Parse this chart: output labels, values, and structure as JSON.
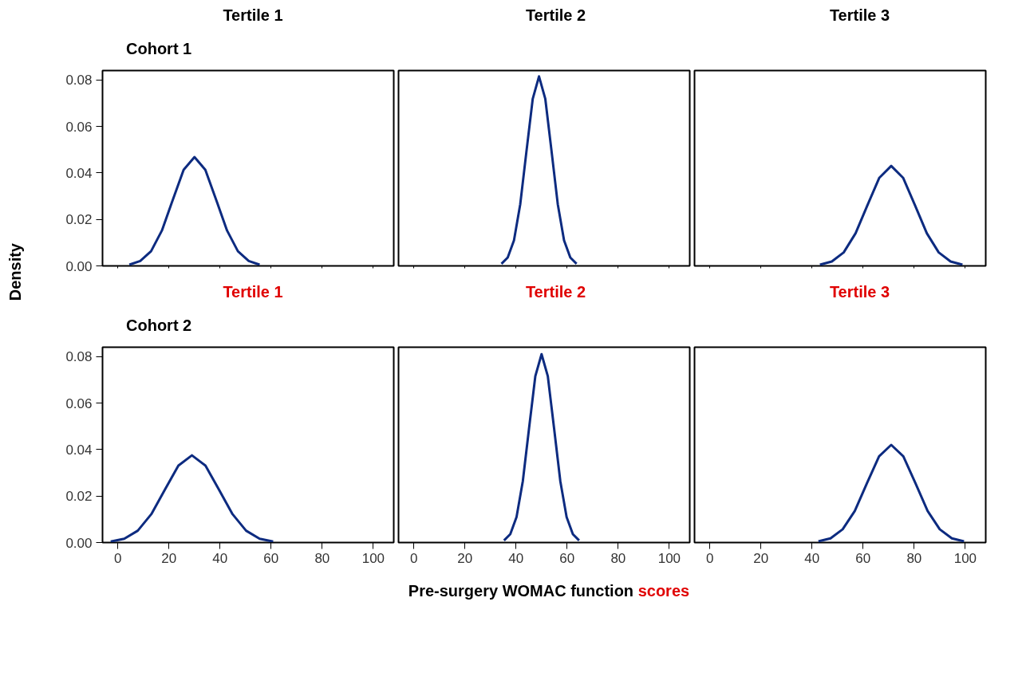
{
  "chart_data": [
    {
      "type": "line",
      "title": "Tertile 1",
      "annotations": [
        "Cohort 1"
      ],
      "color": "#0d2b80",
      "xlim": [
        -6,
        108
      ],
      "ylim": [
        0,
        0.084
      ],
      "xticks": [
        0,
        20,
        40,
        60,
        80,
        100
      ],
      "yticks": [
        {
          "value": 0,
          "label": "0.00"
        },
        {
          "value": 0.02,
          "label": "0.02"
        },
        {
          "value": 0.04,
          "label": "0.04"
        },
        {
          "value": 0.06,
          "label": "0.06"
        },
        {
          "value": 0.08,
          "label": "0.08"
        }
      ],
      "tick_labels": "y",
      "x": [
        4.5,
        8.75,
        13,
        17.25,
        21.5,
        25.75,
        30,
        34.25,
        38.5,
        42.75,
        47,
        51.25,
        55.5
      ],
      "values": [
        0.0005,
        0.0021,
        0.0063,
        0.0152,
        0.0284,
        0.0413,
        0.0468,
        0.0413,
        0.0284,
        0.0152,
        0.0063,
        0.0021,
        0.0005
      ]
    },
    {
      "type": "line",
      "title": "Tertile 2",
      "color": "#0d2b80",
      "xlim": [
        -6,
        108
      ],
      "ylim": [
        0,
        0.084
      ],
      "xticks": [
        0,
        20,
        40,
        60,
        80,
        100
      ],
      "tick_labels": false,
      "x": [
        34.3,
        36.75,
        39.2,
        41.65,
        44.1,
        46.55,
        49,
        51.45,
        53.9,
        56.35,
        58.8,
        61.25,
        63.7
      ],
      "values": [
        0.0009,
        0.0036,
        0.011,
        0.0265,
        0.0494,
        0.0719,
        0.0815,
        0.0719,
        0.0494,
        0.0265,
        0.011,
        0.0036,
        0.0009
      ]
    },
    {
      "type": "line",
      "title": "Tertile 3",
      "color": "#0d2b80",
      "xlim": [
        -6,
        108
      ],
      "ylim": [
        0,
        0.084
      ],
      "xticks": [
        0,
        20,
        40,
        60,
        80,
        100
      ],
      "tick_labels": false,
      "x": [
        43.1,
        47.75,
        52.4,
        57.05,
        61.7,
        66.35,
        71,
        75.65,
        80.3,
        84.95,
        89.6,
        94.25,
        98.9
      ],
      "values": [
        0.0005,
        0.0019,
        0.0058,
        0.014,
        0.0261,
        0.0379,
        0.043,
        0.0379,
        0.0261,
        0.014,
        0.0058,
        0.0019,
        0.0005
      ]
    },
    {
      "type": "line",
      "title": "Tertile 1",
      "annotations": [
        "Cohort 2"
      ],
      "ylabel": "Density",
      "color": "#0d2b80",
      "xlim": [
        -6,
        108
      ],
      "ylim": [
        0,
        0.084
      ],
      "xticks": [
        0,
        20,
        40,
        60,
        80,
        100
      ],
      "yticks": [
        {
          "value": 0,
          "label": "0.00"
        },
        {
          "value": 0.02,
          "label": "0.02"
        },
        {
          "value": 0.04,
          "label": "0.04"
        },
        {
          "value": 0.06,
          "label": "0.06"
        },
        {
          "value": 0.08,
          "label": "0.08"
        }
      ],
      "x": [
        -2.8,
        2.5,
        7.8,
        13.1,
        18.4,
        23.7,
        29,
        34.3,
        39.6,
        44.9,
        50.2,
        55.5,
        60.8
      ],
      "values": [
        0.0004,
        0.0016,
        0.0051,
        0.0122,
        0.0227,
        0.0331,
        0.0375,
        0.0331,
        0.0227,
        0.0122,
        0.0051,
        0.0016,
        0.0004
      ]
    },
    {
      "type": "line",
      "title": "Tertile 2",
      "xlabel": "Pre-surgery WOMAC function scores",
      "color": "#0d2b80",
      "xlim": [
        -6,
        108
      ],
      "ylim": [
        0,
        0.084
      ],
      "xticks": [
        0,
        20,
        40,
        60,
        80,
        100
      ],
      "tick_labels": "x",
      "x": [
        35.3,
        37.75,
        40.2,
        42.65,
        45.1,
        47.55,
        50,
        52.45,
        54.9,
        57.35,
        59.8,
        62.25,
        64.7
      ],
      "values": [
        0.0009,
        0.0036,
        0.011,
        0.0263,
        0.0491,
        0.0715,
        0.081,
        0.0715,
        0.0491,
        0.0263,
        0.011,
        0.0036,
        0.0009
      ]
    },
    {
      "type": "line",
      "title": "Tertile 3",
      "color": "#0d2b80",
      "xlim": [
        -6,
        108
      ],
      "ylim": [
        0,
        0.084
      ],
      "xticks": [
        0,
        20,
        40,
        60,
        80,
        100
      ],
      "tick_labels": "x",
      "x": [
        42.5,
        47.25,
        52,
        56.75,
        61.5,
        66.25,
        71,
        75.75,
        80.5,
        85.25,
        90,
        94.75,
        99.5
      ],
      "values": [
        0.0005,
        0.0018,
        0.0057,
        0.0136,
        0.0255,
        0.0371,
        0.042,
        0.0371,
        0.0255,
        0.0136,
        0.0057,
        0.0018,
        0.0005
      ]
    }
  ]
}
